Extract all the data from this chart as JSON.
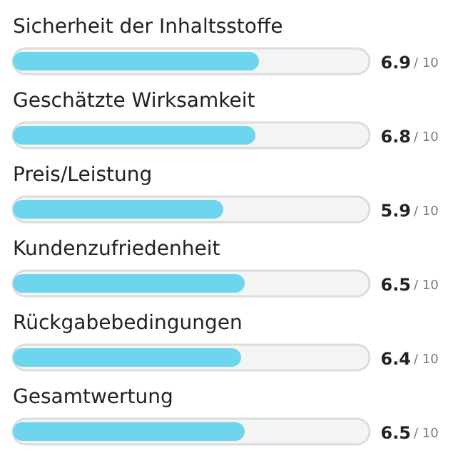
{
  "chart_data": {
    "type": "bar",
    "orientation": "horizontal",
    "categories": [
      "Sicherheit der Inhaltsstoffe",
      "Geschätzte Wirksamkeit",
      "Preis/Leistung",
      "Kundenzufriedenheit",
      "Rückgabebedingungen",
      "Gesamtwertung"
    ],
    "values": [
      6.9,
      6.8,
      5.9,
      6.5,
      6.4,
      6.5
    ],
    "color": "#6dd5ed",
    "data_labels": true,
    "annotations": [
      "/ 10",
      "/ 10",
      "/ 10",
      "/ 10",
      "/ 10",
      "/ 10"
    ],
    "xlim": [
      0,
      10
    ]
  }
}
